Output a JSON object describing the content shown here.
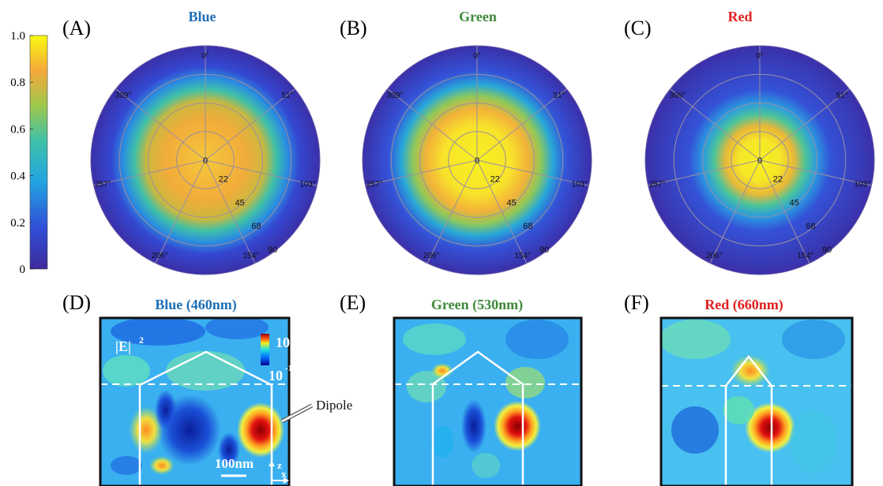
{
  "colorbar": {
    "ticks": [
      "0",
      "0.2",
      "0.4",
      "0.6",
      "0.8",
      "1.0"
    ],
    "colors": [
      "#3d2a9c",
      "#3050d8",
      "#22a6e0",
      "#3fc0a8",
      "#9ec84c",
      "#f5a83a",
      "#f8fa10"
    ]
  },
  "polar_panels": [
    {
      "letter": "(A)",
      "title": "Blue",
      "title_color": "#1f6fb6",
      "angle_labels": [
        "0°",
        "51°",
        "103°",
        "154°",
        "206°",
        "257°",
        "309°"
      ],
      "radial_labels": [
        "0",
        "22",
        "45",
        "68",
        "90"
      ],
      "spot_radius_fraction": 0.62,
      "peak_color": "#f2ac3a"
    },
    {
      "letter": "(B)",
      "title": "Green",
      "title_color": "#3f8a3a",
      "angle_labels": [
        "0°",
        "51°",
        "103°",
        "154°",
        "206°",
        "257°",
        "309°"
      ],
      "radial_labels": [
        "0",
        "22",
        "45",
        "68",
        "90"
      ],
      "spot_radius_fraction": 0.58,
      "peak_color": "#f8e32a"
    },
    {
      "letter": "(C)",
      "title": "Red",
      "title_color": "#e02020",
      "angle_labels": [
        "0°",
        "51°",
        "103°",
        "154°",
        "206°",
        "257°",
        "309°"
      ],
      "radial_labels": [
        "0",
        "22",
        "45",
        "68",
        "90"
      ],
      "spot_radius_fraction": 0.42,
      "peak_color": "#f6e628"
    }
  ],
  "field_panels": [
    {
      "letter": "(D)",
      "title": "Blue (460nm)",
      "title_color": "#1f6fb6"
    },
    {
      "letter": "(E)",
      "title": "Green (530nm)",
      "title_color": "#3f8a3a"
    },
    {
      "letter": "(F)",
      "title": "Red (660nm)",
      "title_color": "#e02020"
    }
  ],
  "field_annotations": {
    "field_label": "|E|",
    "field_exponent": "2",
    "scale_max": "10",
    "scale_max_exp": "2",
    "scale_min": "10",
    "scale_min_exp": "-1",
    "dipole_label": "Dipole",
    "scalebar_label": "100nm",
    "axis_z": "z",
    "axis_x": "x"
  }
}
